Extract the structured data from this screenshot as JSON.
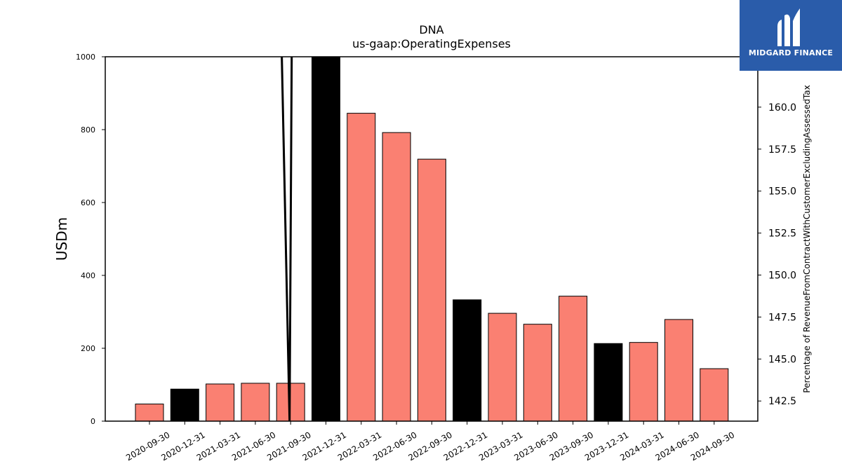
{
  "chart_data": {
    "type": "bar",
    "title": "DNA",
    "subtitle": "us-gaap:OperatingExpenses",
    "ylabel": "USDm",
    "y2label": "Percentage of RevenueFromContractWithCustomerExcludingAssessedTax",
    "ylim": [
      0,
      1000
    ],
    "y2lim": [
      141.3,
      163.0
    ],
    "yticks": [
      0,
      200,
      400,
      600,
      800,
      1000
    ],
    "y2ticks": [
      "142.5",
      "145.0",
      "147.5",
      "150.0",
      "152.5",
      "155.0",
      "157.5",
      "160.0"
    ],
    "grid": false,
    "categories": [
      "2020-09-30",
      "2020-12-31",
      "2021-03-31",
      "2021-06-30",
      "2021-09-30",
      "2021-12-31",
      "2022-03-31",
      "2022-06-30",
      "2022-09-30",
      "2022-12-31",
      "2023-03-31",
      "2023-06-30",
      "2023-09-30",
      "2023-12-31",
      "2024-03-31",
      "2024-06-30",
      "2024-09-30"
    ],
    "values": [
      47,
      88,
      102,
      104,
      104,
      1000,
      845,
      792,
      719,
      333,
      296,
      266,
      343,
      213,
      216,
      279,
      144
    ],
    "highlight": [
      false,
      true,
      false,
      false,
      false,
      true,
      false,
      false,
      false,
      true,
      false,
      false,
      false,
      true,
      false,
      false,
      false
    ],
    "colors": {
      "normal": "#fa8072",
      "highlight": "#000000"
    },
    "line_series": {
      "axis": "y2",
      "color": "#000000",
      "points": [
        {
          "category_index": 3.75,
          "value": 163.0
        },
        {
          "category_index": 3.97,
          "value": 141.3
        },
        {
          "category_index": 4.03,
          "value": 163.0
        }
      ]
    }
  },
  "logo": {
    "text": "MIDGARD FINANCE",
    "icon": "midgard-logo-icon",
    "color": "#2a5caa"
  }
}
